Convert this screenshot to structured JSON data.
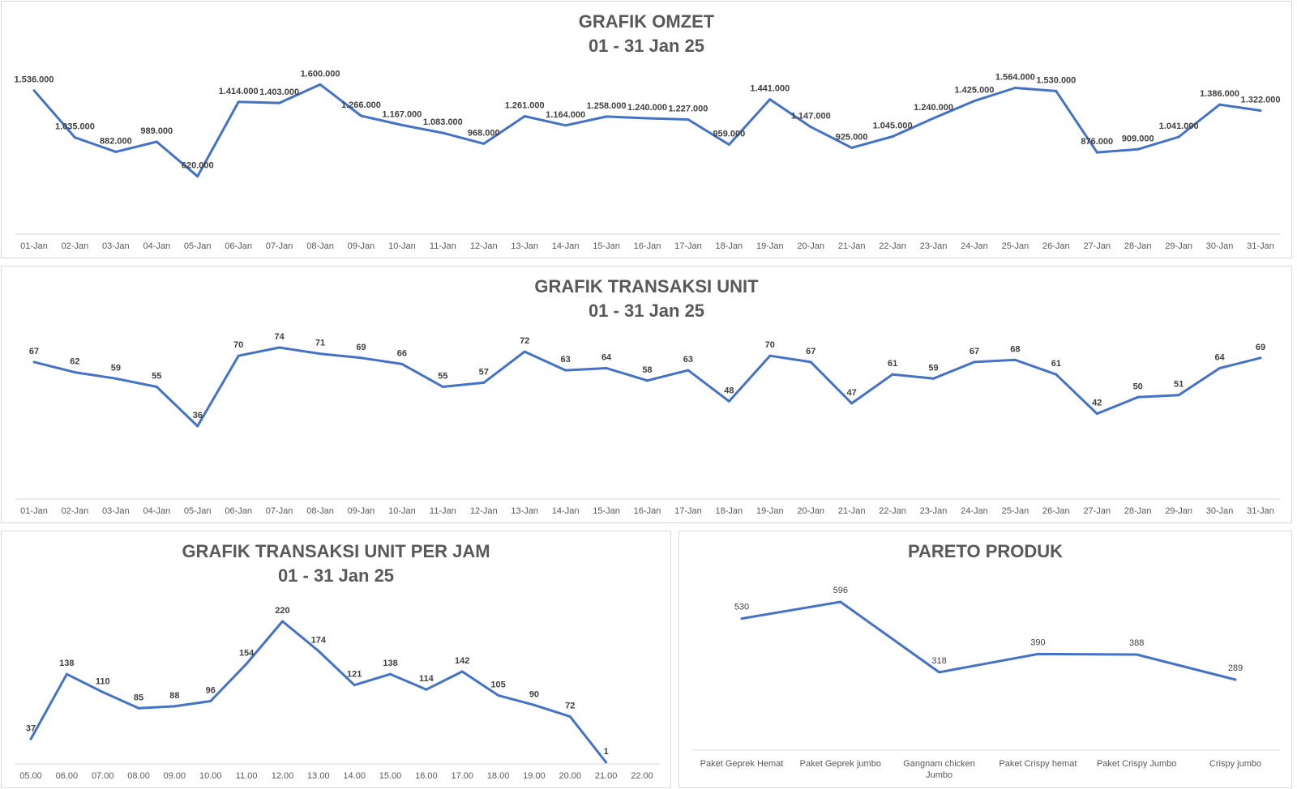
{
  "chart_data": [
    {
      "type": "line",
      "title": "GRAFIK OMZET",
      "subtitle": "01 - 31 Jan 25",
      "categories": [
        "01-Jan",
        "02-Jan",
        "03-Jan",
        "04-Jan",
        "05-Jan",
        "06-Jan",
        "07-Jan",
        "08-Jan",
        "09-Jan",
        "10-Jan",
        "11-Jan",
        "12-Jan",
        "13-Jan",
        "14-Jan",
        "15-Jan",
        "16-Jan",
        "17-Jan",
        "18-Jan",
        "19-Jan",
        "20-Jan",
        "21-Jan",
        "22-Jan",
        "23-Jan",
        "24-Jan",
        "25-Jan",
        "26-Jan",
        "27-Jan",
        "28-Jan",
        "29-Jan",
        "30-Jan",
        "31-Jan"
      ],
      "values": [
        1536000,
        1035000,
        882000,
        989000,
        620000,
        1414000,
        1403000,
        1600000,
        1266000,
        1167000,
        1083000,
        968000,
        1261000,
        1164000,
        1258000,
        1240000,
        1227000,
        959000,
        1441000,
        1147000,
        925000,
        1045000,
        1240000,
        1425000,
        1564000,
        1530000,
        876000,
        909000,
        1041000,
        1386000,
        1322000
      ],
      "data_labels": [
        "1.536.000",
        "1.035.000",
        "882.000",
        "989.000",
        "620.000",
        "1.414.000",
        "1.403.000",
        "1.600.000",
        "1.266.000",
        "1.167.000",
        "1.083.000",
        "968.000",
        "1.261.000",
        "1.164.000",
        "1.258.000",
        "1.240.000",
        "1.227.000",
        "959.000",
        "1.441.000",
        "1.147.000",
        "925.000",
        "1.045.000",
        "1.240.000",
        "1.425.000",
        "1.564.000",
        "1.530.000",
        "876.000",
        "909.000",
        "1.041.000",
        "1.386.000",
        "1.322.000"
      ],
      "grid": false,
      "color": "#4472C4"
    },
    {
      "type": "line",
      "title": "GRAFIK TRANSAKSI UNIT",
      "subtitle": "01 - 31 Jan 25",
      "categories": [
        "01-Jan",
        "02-Jan",
        "03-Jan",
        "04-Jan",
        "05-Jan",
        "06-Jan",
        "07-Jan",
        "08-Jan",
        "09-Jan",
        "10-Jan",
        "11-Jan",
        "12-Jan",
        "13-Jan",
        "14-Jan",
        "15-Jan",
        "16-Jan",
        "17-Jan",
        "18-Jan",
        "19-Jan",
        "20-Jan",
        "21-Jan",
        "22-Jan",
        "23-Jan",
        "24-Jan",
        "25-Jan",
        "26-Jan",
        "27-Jan",
        "28-Jan",
        "29-Jan",
        "30-Jan",
        "31-Jan"
      ],
      "values": [
        67,
        62,
        59,
        55,
        36,
        70,
        74,
        71,
        69,
        66,
        55,
        57,
        72,
        63,
        64,
        58,
        63,
        48,
        70,
        67,
        47,
        61,
        59,
        67,
        68,
        61,
        42,
        50,
        51,
        64,
        69
      ],
      "data_labels": [
        "67",
        "62",
        "59",
        "55",
        "36",
        "70",
        "74",
        "71",
        "69",
        "66",
        "55",
        "57",
        "72",
        "63",
        "64",
        "58",
        "63",
        "48",
        "70",
        "67",
        "47",
        "61",
        "59",
        "67",
        "68",
        "61",
        "42",
        "50",
        "51",
        "64",
        "69"
      ],
      "grid": false,
      "color": "#4472C4"
    },
    {
      "type": "line",
      "title": "GRAFIK TRANSAKSI UNIT PER JAM",
      "subtitle": "01 - 31 Jan 25",
      "categories": [
        "05.00",
        "06.00",
        "07.00",
        "08.00",
        "09.00",
        "10.00",
        "11.00",
        "12.00",
        "13.00",
        "14.00",
        "15.00",
        "16.00",
        "17.00",
        "18.00",
        "19.00",
        "20.00",
        "21.00",
        "22.00"
      ],
      "values": [
        37,
        138,
        110,
        85,
        88,
        96,
        154,
        220,
        174,
        121,
        138,
        114,
        142,
        105,
        90,
        72,
        1,
        null
      ],
      "data_labels": [
        "37",
        "138",
        "110",
        "85",
        "88",
        "96",
        "154",
        "220",
        "174",
        "121",
        "138",
        "114",
        "142",
        "105",
        "90",
        "72",
        "1",
        ""
      ],
      "grid": false,
      "color": "#4472C4"
    },
    {
      "type": "line",
      "title": "PARETO PRODUK",
      "subtitle": "",
      "categories": [
        "Paket Geprek Hemat",
        "Paket Geprek jumbo",
        "Gangnam chicken Jumbo",
        "Paket Crispy hemat",
        "Paket Crispy Jumbo",
        "Crispy jumbo"
      ],
      "values": [
        530,
        596,
        318,
        390,
        388,
        289
      ],
      "data_labels": [
        "530",
        "596",
        "318",
        "390",
        "388",
        "289"
      ],
      "grid": false,
      "color": "#4472C4"
    }
  ]
}
